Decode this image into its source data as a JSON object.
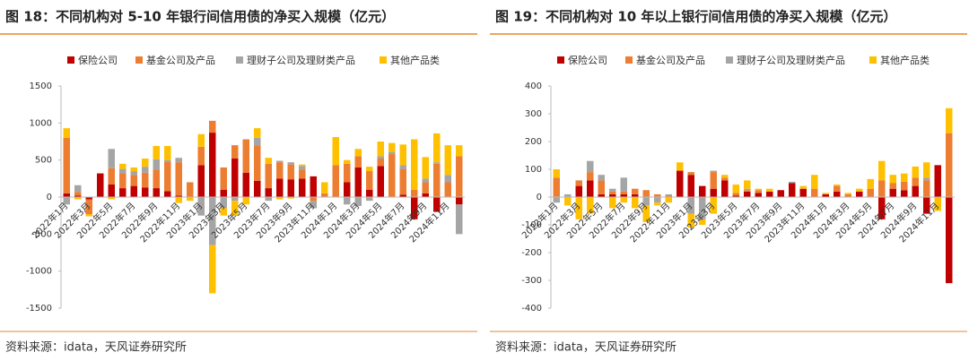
{
  "chart_data": [
    {
      "type": "bar",
      "stacked": true,
      "title": "图 18：不同机构对 5-10 年银行间信用债的净买入规模（亿元）",
      "source": "资料来源：idata，天风证券研究所",
      "legend": "top",
      "categories": [
        "2022年1月",
        null,
        "2022年3月",
        null,
        "2022年5月",
        null,
        "2022年7月",
        null,
        "2022年9月",
        null,
        "2022年11月",
        null,
        "2023年1月",
        null,
        "2023年3月",
        null,
        "2023年5月",
        null,
        "2023年7月",
        null,
        "2023年9月",
        null,
        "2023年11月",
        null,
        "2024年1月",
        null,
        "2024年3月",
        null,
        "2024年5月",
        null,
        "2024年7月",
        null,
        "2024年9月",
        null,
        "2024年11月",
        null
      ],
      "series": [
        {
          "name": "保险公司",
          "color": "#c00000",
          "values": [
            50,
            20,
            -30,
            320,
            170,
            120,
            150,
            130,
            120,
            80,
            20,
            0,
            430,
            870,
            100,
            520,
            330,
            220,
            120,
            250,
            240,
            250,
            280,
            0,
            0,
            200,
            400,
            100,
            420,
            0,
            30,
            -300,
            50,
            -200,
            0,
            -100
          ]
        },
        {
          "name": "基金公司及产品",
          "color": "#ed7d31",
          "values": [
            750,
            50,
            -200,
            0,
            220,
            200,
            150,
            200,
            250,
            400,
            450,
            200,
            250,
            160,
            300,
            180,
            450,
            480,
            330,
            220,
            200,
            120,
            -50,
            50,
            430,
            250,
            150,
            250,
            100,
            580,
            350,
            100,
            150,
            450,
            200,
            550
          ]
        },
        {
          "name": "理财子公司及理财类产品",
          "color": "#a5a5a5",
          "values": [
            -100,
            90,
            0,
            0,
            260,
            60,
            50,
            80,
            140,
            20,
            60,
            0,
            -250,
            -650,
            -150,
            -50,
            0,
            100,
            -50,
            20,
            30,
            50,
            -100,
            0,
            0,
            -100,
            -120,
            -50,
            30,
            30,
            50,
            0,
            50,
            20,
            100,
            -400
          ]
        },
        {
          "name": "其他产品类",
          "color": "#ffc000",
          "values": [
            130,
            -30,
            -30,
            0,
            -30,
            70,
            50,
            110,
            180,
            190,
            -80,
            -50,
            170,
            -650,
            -100,
            -200,
            -100,
            130,
            80,
            -30,
            -20,
            20,
            0,
            150,
            380,
            50,
            100,
            60,
            200,
            120,
            280,
            680,
            290,
            390,
            400,
            150
          ]
        }
      ],
      "ylim": [
        -1500,
        1500
      ],
      "yticks": [
        -1500,
        -1000,
        -500,
        0,
        500,
        1000,
        1500
      ],
      "grid": false
    },
    {
      "type": "bar",
      "stacked": true,
      "title": "图 19：不同机构对 10 年以上银行间信用债的净买入规模（亿元）",
      "source": "资料来源：idata，天风证券研究所",
      "legend": "top",
      "categories": [
        "2022年1月",
        null,
        "2022年3月",
        null,
        "2022年5月",
        null,
        "2022年7月",
        null,
        "2022年9月",
        null,
        "2022年11月",
        null,
        "2023年1月",
        null,
        "2023年3月",
        null,
        "2023年5月",
        null,
        "2023年7月",
        null,
        "2023年9月",
        null,
        "2023年11月",
        null,
        "2024年1月",
        null,
        "2024年3月",
        null,
        "2024年5月",
        null,
        "2024年7月",
        null,
        "2024年9月",
        null,
        "2024年11月",
        null
      ],
      "series": [
        {
          "name": "保险公司",
          "color": "#c00000",
          "values": [
            0,
            0,
            40,
            60,
            10,
            10,
            10,
            10,
            0,
            0,
            0,
            95,
            80,
            40,
            30,
            60,
            5,
            20,
            15,
            20,
            25,
            50,
            30,
            0,
            10,
            20,
            0,
            20,
            0,
            -80,
            30,
            25,
            40,
            -60,
            115,
            -310
          ]
        },
        {
          "name": "基金公司及产品",
          "color": "#ed7d31",
          "values": [
            70,
            0,
            20,
            30,
            50,
            10,
            10,
            20,
            25,
            10,
            5,
            0,
            10,
            0,
            60,
            10,
            10,
            5,
            10,
            0,
            0,
            0,
            0,
            30,
            0,
            20,
            10,
            0,
            30,
            60,
            20,
            30,
            30,
            60,
            0,
            230
          ]
        },
        {
          "name": "理财子公司及理财类产品",
          "color": "#a5a5a5",
          "values": [
            -20,
            10,
            0,
            40,
            20,
            10,
            50,
            0,
            -30,
            -20,
            5,
            0,
            -60,
            -80,
            5,
            0,
            0,
            5,
            0,
            0,
            0,
            5,
            0,
            0,
            0,
            0,
            0,
            0,
            0,
            0,
            0,
            0,
            0,
            10,
            0,
            0
          ]
        },
        {
          "name": "其他产品类",
          "color": "#ffc000",
          "values": [
            30,
            -30,
            -80,
            -60,
            0,
            -40,
            -20,
            -40,
            -60,
            -10,
            -20,
            30,
            -50,
            -20,
            -60,
            10,
            30,
            30,
            5,
            10,
            0,
            0,
            10,
            50,
            5,
            5,
            5,
            10,
            35,
            70,
            30,
            30,
            40,
            55,
            -50,
            90
          ]
        }
      ],
      "ylim": [
        -400,
        400
      ],
      "yticks": [
        -400,
        -300,
        -200,
        -100,
        0,
        100,
        200,
        300,
        400
      ],
      "grid": false
    }
  ]
}
